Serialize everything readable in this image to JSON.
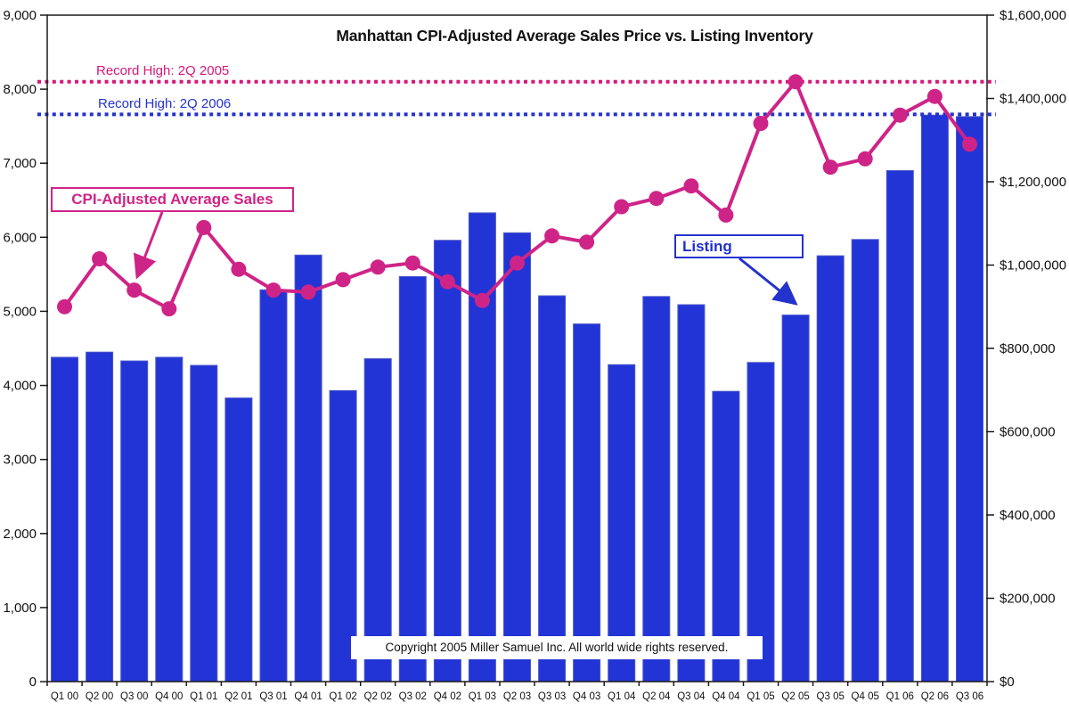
{
  "chart_data": {
    "type": "bar",
    "subtype": "combo-bar-line-dual-axis",
    "title": "Manhattan CPI-Adjusted Average Sales Price vs. Listing Inventory",
    "grid": false,
    "legend_position": "none",
    "categories": [
      "Q1 00",
      "Q2 00",
      "Q3 00",
      "Q4 00",
      "Q1 01",
      "Q2 01",
      "Q3 01",
      "Q4 01",
      "Q1 02",
      "Q2 02",
      "Q3 02",
      "Q4 02",
      "Q1 03",
      "Q2 03",
      "Q3 03",
      "Q4 03",
      "Q1 04",
      "Q2 04",
      "Q3 04",
      "Q4 04",
      "Q1 05",
      "Q2 05",
      "Q3 05",
      "Q4 05",
      "Q1 06",
      "Q2 06",
      "Q3 06"
    ],
    "series": [
      {
        "name": "Listing Inventory",
        "type": "bar",
        "axis": "left",
        "color": "#2334d6",
        "border_color": "#4a57c9",
        "values": [
          4380,
          4450,
          4330,
          4380,
          4270,
          3830,
          5290,
          5760,
          3930,
          4360,
          5470,
          5960,
          6330,
          6060,
          5210,
          4830,
          4280,
          5200,
          5090,
          3920,
          4310,
          4950,
          5750,
          5970,
          6900,
          7650,
          7630
        ]
      },
      {
        "name": "CPI-Adjusted Average Sales Price",
        "type": "line",
        "axis": "right",
        "color": "#cf2487",
        "values": [
          900000,
          1015000,
          940000,
          895000,
          1090000,
          990000,
          940000,
          935000,
          965000,
          995000,
          1005000,
          960000,
          915000,
          1005000,
          1070000,
          1055000,
          1140000,
          1160000,
          1190000,
          1120000,
          1340000,
          1440000,
          1235000,
          1255000,
          1360000,
          1405000,
          1290000
        ]
      }
    ],
    "left_axis": {
      "min": 0,
      "max": 9000,
      "tick_step": 1000,
      "tick_labels": [
        "9,000",
        "8,000",
        "7,000",
        "6,000",
        "5,000",
        "4,000",
        "3,000",
        "2,000",
        "1,000",
        "0"
      ]
    },
    "right_axis": {
      "min": 0,
      "max": 1600000,
      "tick_step": 200000,
      "tick_labels": [
        "$1,600,000",
        "$1,400,000",
        "$1,200,000",
        "$1,000,000",
        "$800,000",
        "$600,000",
        "$400,000",
        "$200,000",
        "$0"
      ]
    },
    "reference_lines": [
      {
        "label": "Record High: 2Q 2005",
        "axis": "right",
        "value": 1440000,
        "color": "#d6177c",
        "style": "dotted"
      },
      {
        "label": "Record High: 2Q 2006",
        "axis": "left",
        "value": 7660,
        "color": "#2433cc",
        "style": "dotted"
      }
    ],
    "annotations": [
      {
        "text": "CPI-Adjusted Average Sales",
        "color": "#cf2487",
        "points_to": "Q3 00 line point"
      },
      {
        "text": "Listing",
        "color": "#2030cf",
        "points_to": "Q2 05 bar top"
      },
      {
        "text": "Copyright 2005 Miller Samuel Inc.  All world wide rights reserved.",
        "color": "#111111"
      }
    ]
  }
}
